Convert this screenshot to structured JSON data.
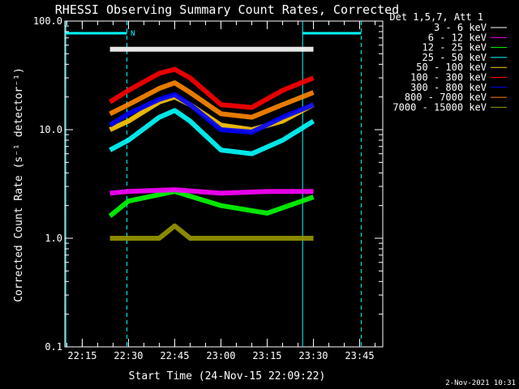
{
  "chart_data": {
    "type": "line",
    "title": "RHESSI Observing Summary Count Rates, Corrected",
    "xlabel": "Start Time (24-Nov-15 22:09:22)",
    "ylabel": "Corrected Count Rate (s⁻¹ detector⁻¹)",
    "y_scale": "log",
    "ylim": [
      0.1,
      100
    ],
    "y_ticks": [
      {
        "value": 0.1,
        "label": "0.1"
      },
      {
        "value": 1,
        "label": "1.0"
      },
      {
        "value": 10,
        "label": "10.0"
      },
      {
        "value": 100,
        "label": "100.0"
      }
    ],
    "x_range": [
      "22:09:22",
      "23:52:30"
    ],
    "x_ticks": [
      "22:15",
      "22:30",
      "22:45",
      "23:00",
      "23:15",
      "23:30",
      "23:45"
    ],
    "legend": {
      "position": "top-right",
      "header": "Det 1,5,7, Att 1"
    },
    "series": [
      {
        "name": "3 - 6 keV",
        "color": "#ffffff",
        "x": [
          "22:24",
          "22:30",
          "22:45",
          "23:00",
          "23:15",
          "23:30"
        ],
        "y": [
          55,
          55,
          55,
          55,
          55,
          55
        ]
      },
      {
        "name": "6 - 12 keV",
        "color": "#ff00ff",
        "x": [
          "22:24",
          "22:30",
          "22:45",
          "23:00",
          "23:15",
          "23:30"
        ],
        "y": [
          2.6,
          2.7,
          2.8,
          2.6,
          2.7,
          2.7
        ]
      },
      {
        "name": "12 - 25 keV",
        "color": "#00ff00",
        "x": [
          "22:24",
          "22:30",
          "22:45",
          "23:00",
          "23:15",
          "23:30"
        ],
        "y": [
          1.6,
          2.2,
          2.7,
          2.0,
          1.7,
          2.4
        ]
      },
      {
        "name": "25 - 50 keV",
        "color": "#00ffff",
        "x": [
          "22:24",
          "22:30",
          "22:40",
          "22:45",
          "22:50",
          "23:00",
          "23:10",
          "23:20",
          "23:30"
        ],
        "y": [
          6.5,
          8,
          13,
          15,
          12,
          6.5,
          6,
          8,
          12
        ]
      },
      {
        "name": "50 - 100 keV",
        "color": "#ffcc00",
        "x": [
          "22:24",
          "22:30",
          "22:40",
          "22:45",
          "22:50",
          "23:00",
          "23:10",
          "23:20",
          "23:30"
        ],
        "y": [
          10,
          12,
          18,
          20,
          17,
          11,
          10,
          12,
          17
        ]
      },
      {
        "name": "100 - 300 keV",
        "color": "#ff0000",
        "x": [
          "22:24",
          "22:30",
          "22:40",
          "22:45",
          "22:50",
          "23:00",
          "23:10",
          "23:20",
          "23:30"
        ],
        "y": [
          18,
          23,
          33,
          36,
          30,
          17,
          16,
          23,
          30
        ]
      },
      {
        "name": "300 - 800 keV",
        "color": "#0000ff",
        "x": [
          "22:24",
          "22:30",
          "22:40",
          "22:45",
          "22:50",
          "23:00",
          "23:10",
          "23:20",
          "23:30"
        ],
        "y": [
          11,
          14,
          19,
          21,
          17,
          10,
          9.5,
          13,
          17
        ]
      },
      {
        "name": "800 - 7000 keV",
        "color": "#ff8800",
        "x": [
          "22:24",
          "22:30",
          "22:40",
          "22:45",
          "22:50",
          "23:00",
          "23:10",
          "23:20",
          "23:30"
        ],
        "y": [
          14,
          17,
          24,
          27,
          22,
          14,
          13,
          17,
          22
        ]
      },
      {
        "name": "7000 - 15000 keV",
        "color": "#999900",
        "x": [
          "22:24",
          "22:30",
          "22:40",
          "22:45",
          "22:50",
          "23:00",
          "23:10",
          "23:20",
          "23:30"
        ],
        "y": [
          1,
          1,
          1,
          1.3,
          1,
          1,
          1,
          1,
          1
        ]
      }
    ],
    "annotations": {
      "markers": [
        "N"
      ],
      "timestamp": "2-Nov-2021 10:31"
    }
  }
}
